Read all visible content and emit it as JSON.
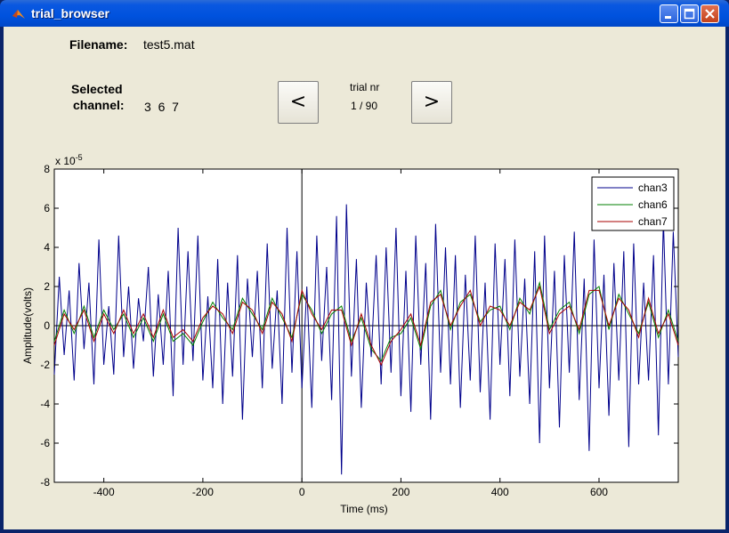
{
  "window": {
    "title": "trial_browser"
  },
  "info": {
    "filename_label": "Filename:",
    "filename_value": "test5.mat",
    "selected_label_1": "Selected",
    "selected_label_2": "channel:",
    "selected_value": "3  6  7",
    "prev_label": "<",
    "next_label": ">",
    "trial_label": "trial nr",
    "trial_value": "1 / 90"
  },
  "chart_data": {
    "type": "line",
    "xlabel": "Time (ms)",
    "ylabel": "Amplitude(volts)",
    "y_exponent_label": "x 10",
    "y_exponent_power": "-5",
    "xlim": [
      -500,
      760
    ],
    "ylim": [
      -8,
      8
    ],
    "x_ticks": [
      -400,
      -200,
      0,
      200,
      400,
      600
    ],
    "y_ticks": [
      -8,
      -6,
      -4,
      -2,
      0,
      2,
      4,
      6,
      8
    ],
    "grid": false,
    "legend_position": "top-right",
    "zero_lines": true,
    "series": [
      {
        "name": "chan3",
        "color": "#00008b",
        "x": [
          -500,
          -490,
          -480,
          -470,
          -460,
          -450,
          -440,
          -430,
          -420,
          -410,
          -400,
          -390,
          -380,
          -370,
          -360,
          -350,
          -340,
          -330,
          -320,
          -310,
          -300,
          -290,
          -280,
          -270,
          -260,
          -250,
          -240,
          -230,
          -220,
          -210,
          -200,
          -190,
          -180,
          -170,
          -160,
          -150,
          -140,
          -130,
          -120,
          -110,
          -100,
          -90,
          -80,
          -70,
          -60,
          -50,
          -40,
          -30,
          -20,
          -10,
          0,
          10,
          20,
          30,
          40,
          50,
          60,
          70,
          80,
          90,
          100,
          110,
          120,
          130,
          140,
          150,
          160,
          170,
          180,
          190,
          200,
          210,
          220,
          230,
          240,
          250,
          260,
          270,
          280,
          290,
          300,
          310,
          320,
          330,
          340,
          350,
          360,
          370,
          380,
          390,
          400,
          410,
          420,
          430,
          440,
          450,
          460,
          470,
          480,
          490,
          500,
          510,
          520,
          530,
          540,
          550,
          560,
          570,
          580,
          590,
          600,
          610,
          620,
          630,
          640,
          650,
          660,
          670,
          680,
          690,
          700,
          710,
          720,
          730,
          740,
          750,
          760
        ],
        "values": [
          -2.5,
          2.5,
          -1.5,
          1.8,
          -2.8,
          3.2,
          -1.2,
          2.2,
          -3.0,
          4.4,
          -2.0,
          1.0,
          -2.5,
          4.6,
          -1.6,
          2.0,
          -2.2,
          1.4,
          -0.8,
          3.0,
          -2.6,
          1.6,
          -2.0,
          2.8,
          -3.6,
          5.0,
          -2.0,
          3.8,
          -1.8,
          4.6,
          -2.8,
          1.5,
          -3.2,
          3.4,
          -4.0,
          2.2,
          -2.6,
          3.6,
          -4.8,
          2.4,
          -1.6,
          2.8,
          -3.2,
          4.2,
          -2.2,
          1.8,
          -4.0,
          5.0,
          -2.4,
          3.8,
          -3.2,
          2.0,
          -4.2,
          4.6,
          -1.8,
          3.0,
          -3.8,
          5.6,
          -7.6,
          6.2,
          -2.6,
          3.4,
          -4.2,
          2.2,
          -1.6,
          3.6,
          -3.0,
          4.0,
          -2.4,
          5.0,
          -3.6,
          2.8,
          -4.4,
          4.6,
          -2.0,
          3.2,
          -4.8,
          5.2,
          -2.4,
          4.0,
          -3.0,
          3.6,
          -4.2,
          2.6,
          -2.8,
          4.6,
          -3.4,
          2.2,
          -4.8,
          4.2,
          -2.0,
          3.4,
          -3.6,
          4.4,
          -2.6,
          2.4,
          -4.0,
          3.8,
          -6.0,
          4.6,
          -3.2,
          2.8,
          -5.2,
          3.6,
          -2.4,
          4.8,
          -3.8,
          2.4,
          -6.4,
          4.4,
          -3.2,
          2.6,
          -4.6,
          3.2,
          -2.8,
          3.8,
          -6.2,
          4.2,
          -3.0,
          2.2,
          -2.8,
          3.6,
          -5.6,
          5.4,
          -3.0,
          4.8,
          -1.6
        ]
      },
      {
        "name": "chan6",
        "color": "#007f00",
        "x": [
          -500,
          -480,
          -460,
          -440,
          -420,
          -400,
          -380,
          -360,
          -340,
          -320,
          -300,
          -280,
          -260,
          -240,
          -220,
          -200,
          -180,
          -160,
          -140,
          -120,
          -100,
          -80,
          -60,
          -40,
          -20,
          0,
          20,
          40,
          60,
          80,
          100,
          120,
          140,
          160,
          180,
          200,
          220,
          240,
          260,
          280,
          300,
          320,
          340,
          360,
          380,
          400,
          420,
          440,
          460,
          480,
          500,
          520,
          540,
          560,
          580,
          600,
          620,
          640,
          660,
          680,
          700,
          720,
          740,
          760
        ],
        "values": [
          -0.8,
          0.8,
          -0.4,
          1.0,
          -0.6,
          0.8,
          -0.2,
          0.6,
          -0.6,
          0.4,
          -0.8,
          0.6,
          -0.8,
          -0.4,
          -1.0,
          0.2,
          1.2,
          0.4,
          -0.2,
          1.4,
          0.6,
          -0.2,
          1.4,
          0.4,
          -0.6,
          1.6,
          0.8,
          -0.4,
          0.6,
          1.0,
          -0.8,
          0.4,
          -1.2,
          -1.8,
          -0.6,
          -0.4,
          0.4,
          -1.2,
          1.0,
          1.8,
          -0.2,
          1.2,
          1.6,
          0.2,
          0.8,
          1.0,
          -0.2,
          1.4,
          0.6,
          2.2,
          -0.2,
          0.8,
          1.2,
          -0.4,
          1.6,
          2.0,
          -0.2,
          1.6,
          0.6,
          -0.4,
          1.2,
          -0.6,
          0.8,
          -0.8
        ]
      },
      {
        "name": "chan7",
        "color": "#aa0000",
        "x": [
          -500,
          -480,
          -460,
          -440,
          -420,
          -400,
          -380,
          -360,
          -340,
          -320,
          -300,
          -280,
          -260,
          -240,
          -220,
          -200,
          -180,
          -160,
          -140,
          -120,
          -100,
          -80,
          -60,
          -40,
          -20,
          0,
          20,
          40,
          60,
          80,
          100,
          120,
          140,
          160,
          180,
          200,
          220,
          240,
          260,
          280,
          300,
          320,
          340,
          360,
          380,
          400,
          420,
          440,
          460,
          480,
          500,
          520,
          540,
          560,
          580,
          600,
          620,
          640,
          660,
          680,
          700,
          720,
          740,
          760
        ],
        "values": [
          -1.0,
          0.6,
          -0.2,
          0.8,
          -0.8,
          0.6,
          -0.4,
          0.8,
          -0.4,
          0.6,
          -0.6,
          0.8,
          -0.6,
          -0.2,
          -0.8,
          0.4,
          1.0,
          0.6,
          -0.4,
          1.2,
          0.8,
          -0.4,
          1.2,
          0.6,
          -0.8,
          1.8,
          0.6,
          -0.2,
          0.8,
          0.8,
          -1.0,
          0.6,
          -1.0,
          -2.0,
          -0.8,
          -0.2,
          0.6,
          -1.0,
          1.2,
          1.6,
          0.0,
          1.0,
          1.8,
          0.0,
          1.0,
          0.8,
          0.0,
          1.2,
          0.8,
          2.0,
          -0.4,
          0.6,
          1.0,
          -0.2,
          1.8,
          1.8,
          0.0,
          1.4,
          0.8,
          -0.6,
          1.4,
          -0.4,
          0.6,
          -1.0
        ]
      }
    ]
  }
}
